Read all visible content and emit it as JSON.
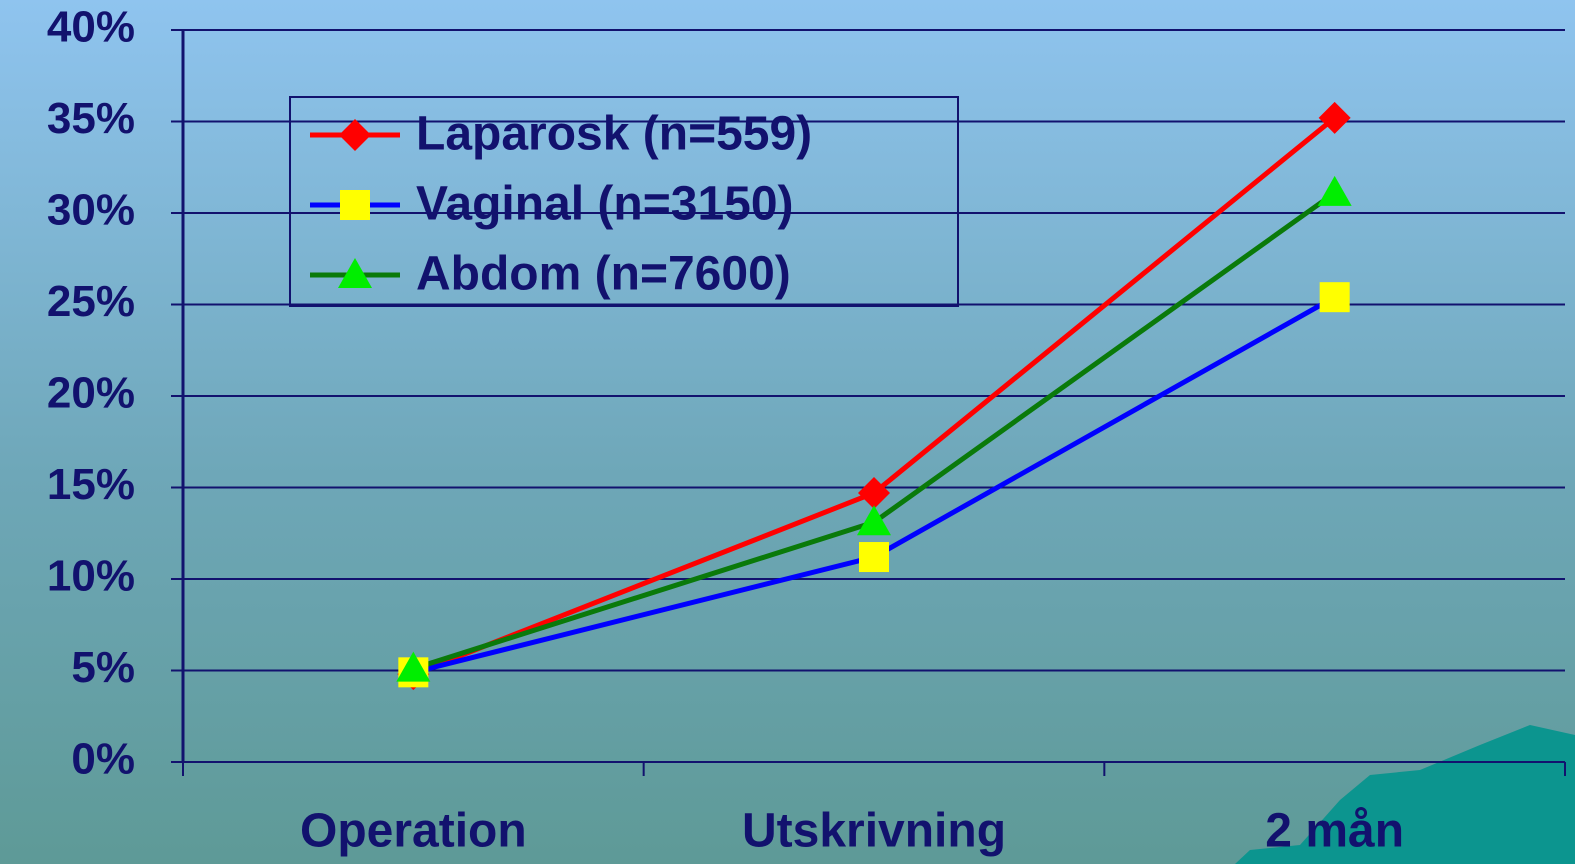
{
  "chart_data": {
    "type": "line",
    "categories": [
      "Operation",
      "Utskrivning",
      "2 mån"
    ],
    "series": [
      {
        "name": "Laparosk (n=559)",
        "color": "#ff0000",
        "marker": "diamond",
        "marker_color": "#ff0000",
        "values": [
          4.8,
          14.7,
          35.2
        ]
      },
      {
        "name": "Vaginal (n=3150)",
        "color": "#0000ff",
        "marker": "square",
        "marker_color": "#ffff00",
        "values": [
          4.9,
          11.2,
          25.4
        ]
      },
      {
        "name": "Abdom (n=7600)",
        "color": "#0a7a0a",
        "marker": "triangle",
        "marker_color": "#00ee00",
        "values": [
          5.1,
          13.1,
          31.1
        ]
      }
    ],
    "ylim": [
      0,
      40
    ],
    "yticks": [
      {
        "value": 0,
        "label": "0%"
      },
      {
        "value": 5,
        "label": "5%"
      },
      {
        "value": 10,
        "label": "10%"
      },
      {
        "value": 15,
        "label": "15%"
      },
      {
        "value": 20,
        "label": "20%"
      },
      {
        "value": 25,
        "label": "25%"
      },
      {
        "value": 30,
        "label": "30%"
      },
      {
        "value": 35,
        "label": "35%"
      },
      {
        "value": 40,
        "label": "40%"
      }
    ],
    "grid": true,
    "legend": "top-left"
  }
}
